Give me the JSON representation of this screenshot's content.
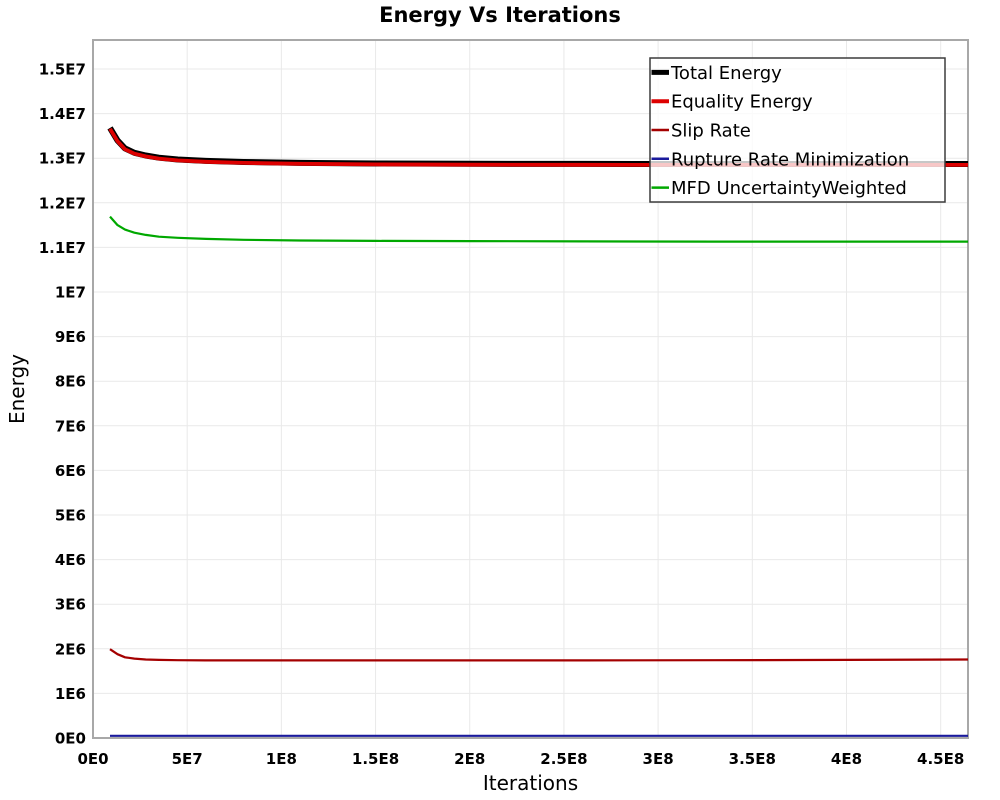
{
  "title": "Energy Vs Iterations",
  "axes": {
    "x": {
      "label": "Iterations",
      "tick_labels": [
        "0E0",
        "5E7",
        "1E8",
        "1.5E8",
        "2E8",
        "2.5E8",
        "3E8",
        "3.5E8",
        "4E8",
        "4.5E8"
      ],
      "tick_values": [
        0,
        50000000,
        100000000,
        150000000,
        200000000,
        250000000,
        300000000,
        350000000,
        400000000,
        450000000
      ]
    },
    "y": {
      "label": "Energy",
      "tick_labels": [
        "0E0",
        "1E6",
        "2E6",
        "3E6",
        "4E6",
        "5E6",
        "6E6",
        "7E6",
        "8E6",
        "9E6",
        "1E7",
        "1.1E7",
        "1.2E7",
        "1.3E7",
        "1.4E7",
        "1.5E7"
      ],
      "tick_values": [
        0,
        1000000,
        2000000,
        3000000,
        4000000,
        5000000,
        6000000,
        7000000,
        8000000,
        9000000,
        10000000,
        11000000,
        12000000,
        13000000,
        14000000,
        15000000
      ]
    }
  },
  "colors": {
    "background": "#ffffff",
    "grid": "#e9e9e9",
    "plot_border": "#a8a8a8",
    "legend_border": "#3c3c3c",
    "legend_bg_opacity": 0.78,
    "text": "#000000"
  },
  "chart_data": {
    "type": "line",
    "title": "Energy Vs Iterations",
    "xlabel": "Iterations",
    "ylabel": "Energy",
    "xlim": [
      0,
      464500000
    ],
    "ylim": [
      0,
      15650000
    ],
    "grid": true,
    "legend_position": "top-right",
    "x": [
      9000000,
      13000000,
      17000000,
      22000000,
      28000000,
      35000000,
      45000000,
      60000000,
      80000000,
      110000000,
      150000000,
      200000000,
      260000000,
      330000000,
      400000000,
      464500000
    ],
    "series": [
      {
        "name": "Total Energy",
        "color": "#000000",
        "line_width": 6,
        "legend_line_width": 5,
        "values": [
          13680000,
          13400000,
          13220000,
          13120000,
          13060000,
          13010000,
          12970000,
          12940000,
          12915000,
          12895000,
          12880000,
          12875000,
          12872000,
          12870000,
          12870000,
          12870000
        ]
      },
      {
        "name": "Equality Energy",
        "color": "#dd0000",
        "line_width": 3.8,
        "legend_line_width": 4,
        "values": [
          13660000,
          13380000,
          13200000,
          13100000,
          13040000,
          12990000,
          12950000,
          12920000,
          12895000,
          12875000,
          12860000,
          12855000,
          12852000,
          12850000,
          12850000,
          12850000
        ]
      },
      {
        "name": "Slip Rate",
        "color": "#a40000",
        "line_width": 2.2,
        "legend_line_width": 2.5,
        "values": [
          1990000,
          1880000,
          1810000,
          1780000,
          1760000,
          1750000,
          1745000,
          1740000,
          1740000,
          1740000,
          1740000,
          1740000,
          1740000,
          1745000,
          1750000,
          1760000
        ]
      },
      {
        "name": "Rupture Rate Minimization",
        "color": "#1a1a9c",
        "line_width": 2.2,
        "legend_line_width": 2.5,
        "values": [
          50000,
          50000,
          50000,
          50000,
          50000,
          50000,
          50000,
          50000,
          50000,
          50000,
          50000,
          50000,
          50000,
          50000,
          50000,
          50000
        ]
      },
      {
        "name": "MFD UncertaintyWeighted",
        "color": "#00a800",
        "line_width": 2.2,
        "legend_line_width": 2.5,
        "values": [
          11690000,
          11500000,
          11400000,
          11330000,
          11280000,
          11240000,
          11215000,
          11190000,
          11170000,
          11155000,
          11145000,
          11140000,
          11135000,
          11130000,
          11130000,
          11130000
        ]
      }
    ]
  }
}
